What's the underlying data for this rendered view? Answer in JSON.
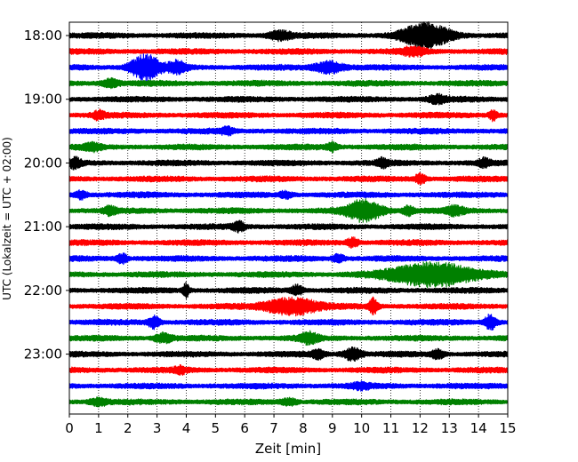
{
  "chart_data": {
    "type": "line",
    "title": "",
    "xlabel": "Zeit  [min]",
    "ylabel": "UTC (Lokalzeit = UTC + 02:00)",
    "xlim": [
      0,
      15
    ],
    "x_ticks": [
      "0",
      "1",
      "2",
      "3",
      "4",
      "5",
      "6",
      "7",
      "8",
      "9",
      "10",
      "11",
      "12",
      "13",
      "14",
      "15"
    ],
    "y_ticks": [
      "18:00",
      "19:00",
      "20:00",
      "21:00",
      "22:00",
      "23:00"
    ],
    "grid": "vertical dotted",
    "color_cycle": [
      "#000000",
      "#ff0000",
      "#0000ff",
      "#008000"
    ],
    "traces": [
      {
        "start": "18:00",
        "color": "#000000",
        "events": [
          {
            "t": 12.2,
            "amp": 1.0,
            "dur": 0.8
          },
          {
            "t": 7.2,
            "amp": 0.35,
            "dur": 0.4
          }
        ]
      },
      {
        "start": "18:15",
        "color": "#ff0000",
        "events": [
          {
            "t": 11.8,
            "amp": 0.3,
            "dur": 0.4
          }
        ]
      },
      {
        "start": "18:30",
        "color": "#0000ff",
        "events": [
          {
            "t": 2.6,
            "amp": 1.0,
            "dur": 0.5
          },
          {
            "t": 3.7,
            "amp": 0.45,
            "dur": 0.3
          },
          {
            "t": 8.9,
            "amp": 0.45,
            "dur": 0.5
          }
        ]
      },
      {
        "start": "18:45",
        "color": "#008000",
        "events": [
          {
            "t": 1.4,
            "amp": 0.3,
            "dur": 0.3
          }
        ]
      },
      {
        "start": "19:00",
        "color": "#000000",
        "events": [
          {
            "t": 12.6,
            "amp": 0.3,
            "dur": 0.3
          }
        ]
      },
      {
        "start": "19:15",
        "color": "#ff0000",
        "events": [
          {
            "t": 1.0,
            "amp": 0.3,
            "dur": 0.2
          },
          {
            "t": 14.5,
            "amp": 0.4,
            "dur": 0.15
          }
        ]
      },
      {
        "start": "19:30",
        "color": "#0000ff",
        "events": [
          {
            "t": 5.4,
            "amp": 0.25,
            "dur": 0.2
          }
        ]
      },
      {
        "start": "19:45",
        "color": "#008000",
        "events": [
          {
            "t": 0.8,
            "amp": 0.25,
            "dur": 0.3
          },
          {
            "t": 9.0,
            "amp": 0.3,
            "dur": 0.2
          }
        ]
      },
      {
        "start": "20:00",
        "color": "#000000",
        "events": [
          {
            "t": 0.2,
            "amp": 0.35,
            "dur": 0.2
          },
          {
            "t": 10.7,
            "amp": 0.3,
            "dur": 0.2
          },
          {
            "t": 14.2,
            "amp": 0.3,
            "dur": 0.2
          }
        ]
      },
      {
        "start": "20:15",
        "color": "#ff0000",
        "events": [
          {
            "t": 12.0,
            "amp": 0.35,
            "dur": 0.2
          }
        ]
      },
      {
        "start": "20:30",
        "color": "#0000ff",
        "events": [
          {
            "t": 0.4,
            "amp": 0.3,
            "dur": 0.2
          },
          {
            "t": 7.4,
            "amp": 0.25,
            "dur": 0.2
          }
        ]
      },
      {
        "start": "20:45",
        "color": "#008000",
        "events": [
          {
            "t": 10.1,
            "amp": 0.85,
            "dur": 0.6
          },
          {
            "t": 11.6,
            "amp": 0.35,
            "dur": 0.2
          },
          {
            "t": 13.2,
            "amp": 0.3,
            "dur": 0.3
          },
          {
            "t": 1.4,
            "amp": 0.3,
            "dur": 0.2
          }
        ]
      },
      {
        "start": "21:00",
        "color": "#000000",
        "events": [
          {
            "t": 5.8,
            "amp": 0.35,
            "dur": 0.2
          }
        ]
      },
      {
        "start": "21:15",
        "color": "#ff0000",
        "events": [
          {
            "t": 9.7,
            "amp": 0.35,
            "dur": 0.2
          }
        ]
      },
      {
        "start": "21:30",
        "color": "#0000ff",
        "events": [
          {
            "t": 1.8,
            "amp": 0.35,
            "dur": 0.2
          },
          {
            "t": 9.2,
            "amp": 0.3,
            "dur": 0.2
          }
        ]
      },
      {
        "start": "21:45",
        "color": "#008000",
        "events": [
          {
            "t": 12.4,
            "amp": 1.0,
            "dur": 1.4
          }
        ]
      },
      {
        "start": "22:00",
        "color": "#000000",
        "events": [
          {
            "t": 4.0,
            "amp": 0.6,
            "dur": 0.1
          },
          {
            "t": 7.8,
            "amp": 0.4,
            "dur": 0.2
          }
        ]
      },
      {
        "start": "22:15",
        "color": "#ff0000",
        "events": [
          {
            "t": 7.6,
            "amp": 0.7,
            "dur": 0.9
          },
          {
            "t": 10.4,
            "amp": 0.65,
            "dur": 0.15
          }
        ]
      },
      {
        "start": "22:30",
        "color": "#0000ff",
        "events": [
          {
            "t": 2.9,
            "amp": 0.45,
            "dur": 0.2
          },
          {
            "t": 14.4,
            "amp": 0.6,
            "dur": 0.2
          }
        ]
      },
      {
        "start": "22:45",
        "color": "#008000",
        "events": [
          {
            "t": 3.2,
            "amp": 0.35,
            "dur": 0.3
          },
          {
            "t": 8.2,
            "amp": 0.4,
            "dur": 0.3
          }
        ]
      },
      {
        "start": "23:00",
        "color": "#000000",
        "events": [
          {
            "t": 9.7,
            "amp": 0.5,
            "dur": 0.3
          },
          {
            "t": 8.5,
            "amp": 0.35,
            "dur": 0.2
          },
          {
            "t": 12.6,
            "amp": 0.35,
            "dur": 0.2
          }
        ]
      },
      {
        "start": "23:15",
        "color": "#ff0000",
        "events": [
          {
            "t": 3.8,
            "amp": 0.25,
            "dur": 0.2
          }
        ]
      },
      {
        "start": "23:30",
        "color": "#0000ff",
        "events": [
          {
            "t": 10.0,
            "amp": 0.2,
            "dur": 0.3
          }
        ]
      },
      {
        "start": "23:45",
        "color": "#008000",
        "events": [
          {
            "t": 1.0,
            "amp": 0.25,
            "dur": 0.3
          },
          {
            "t": 7.5,
            "amp": 0.25,
            "dur": 0.3
          }
        ]
      }
    ]
  }
}
